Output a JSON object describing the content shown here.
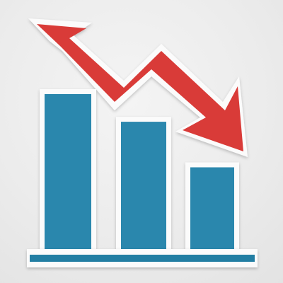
{
  "scene": {
    "subject": "paper-cutout-declining-bar-chart",
    "colors": {
      "background": "#ececec",
      "paper_white": "#fbfbfb",
      "bar_blue": "#2b87ad",
      "baseline_blue": "#247ea3",
      "arrow_red": "#d93b37"
    },
    "bars": [
      {
        "relative_height": 1.0
      },
      {
        "relative_height": 0.83
      },
      {
        "relative_height": 0.55
      }
    ],
    "arrow": {
      "direction": "down-right",
      "icon": "trend-down-arrow"
    }
  }
}
